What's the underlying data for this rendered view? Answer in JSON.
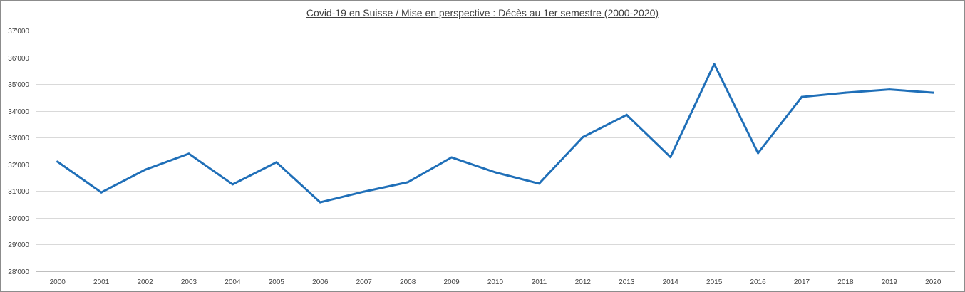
{
  "chart_data": {
    "type": "line",
    "title": "Covid-19 en Suisse / Mise en perspective : Décès au 1er semestre (2000-2020)",
    "xlabel": "",
    "ylabel": "",
    "x": [
      "2000",
      "2001",
      "2002",
      "2003",
      "2004",
      "2005",
      "2006",
      "2007",
      "2008",
      "2009",
      "2010",
      "2011",
      "2012",
      "2013",
      "2014",
      "2015",
      "2016",
      "2017",
      "2018",
      "2019",
      "2020"
    ],
    "series": [
      {
        "values": [
          32100,
          30950,
          31800,
          32400,
          31250,
          32080,
          30580,
          30980,
          31330,
          32260,
          31700,
          31280,
          33020,
          33850,
          32270,
          35750,
          32420,
          34520,
          34680,
          34800,
          34680
        ],
        "color": "#1f6fb8"
      }
    ],
    "ylim": [
      28000,
      37000
    ],
    "yticks": [
      28000,
      29000,
      30000,
      31000,
      32000,
      33000,
      34000,
      35000,
      36000,
      37000
    ],
    "ytick_labels": [
      "28'000",
      "29'000",
      "30'000",
      "31'000",
      "32'000",
      "33'000",
      "34'000",
      "35'000",
      "36'000",
      "37'000"
    ],
    "grid": true,
    "legend": "none"
  }
}
